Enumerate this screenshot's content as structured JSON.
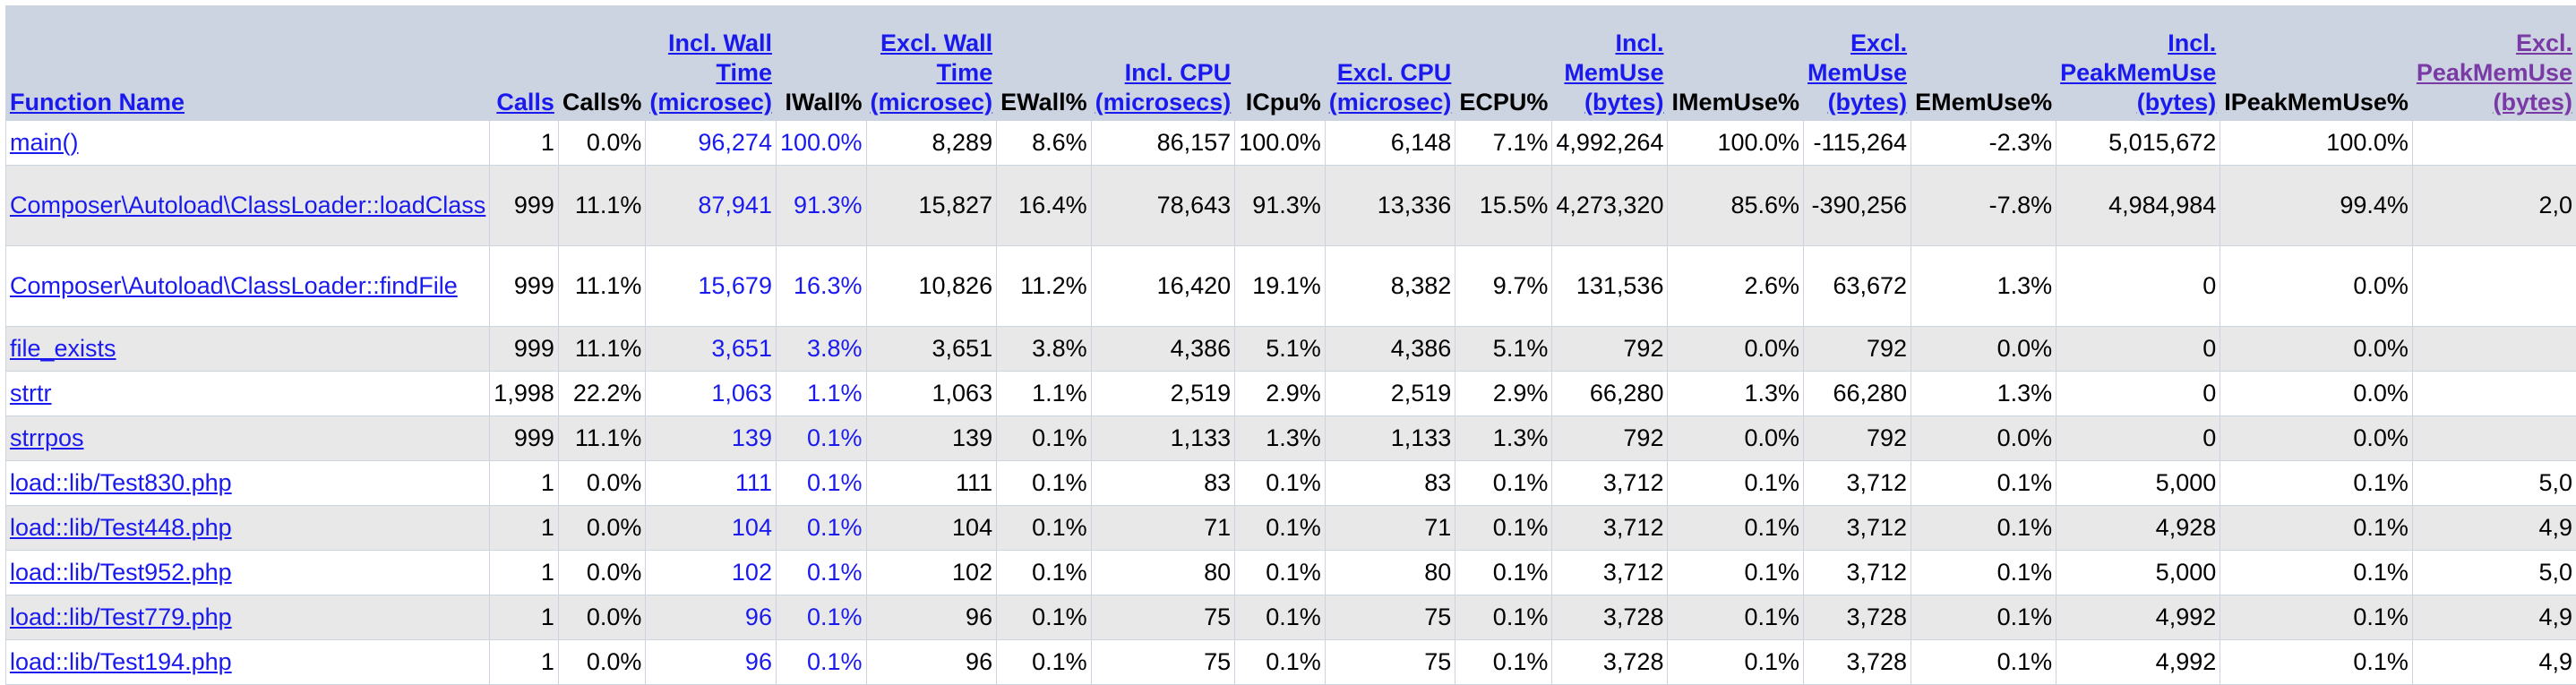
{
  "headers": [
    {
      "label": "Function Name",
      "link": true
    },
    {
      "label": "Calls",
      "link": true
    },
    {
      "label": "Calls%",
      "link": false
    },
    {
      "label": "Incl. Wall Time (microsec)",
      "link": true
    },
    {
      "label": "IWall%",
      "link": false
    },
    {
      "label": "Excl. Wall Time (microsec)",
      "link": true
    },
    {
      "label": "EWall%",
      "link": false
    },
    {
      "label": "Incl. CPU (microsecs)",
      "link": true
    },
    {
      "label": "ICpu%",
      "link": false
    },
    {
      "label": "Excl. CPU (microsec)",
      "link": true
    },
    {
      "label": "ECPU%",
      "link": false
    },
    {
      "label": "Incl. MemUse (bytes)",
      "link": true
    },
    {
      "label": "IMemUse%",
      "link": false
    },
    {
      "label": "Excl. MemUse (bytes)",
      "link": true
    },
    {
      "label": "EMemUse%",
      "link": false
    },
    {
      "label": "Incl. PeakMemUse (bytes)",
      "link": true
    },
    {
      "label": "IPeakMemUse%",
      "link": false
    },
    {
      "label": "Excl. PeakMemUse (bytes)",
      "link": true
    }
  ],
  "rows": [
    {
      "cells": [
        "main()",
        "1",
        "0.0%",
        "96,274",
        "100.0%",
        "8,289",
        "8.6%",
        "86,157",
        "100.0%",
        "6,148",
        "7.1%",
        "4,992,264",
        "100.0%",
        "-115,264",
        "-2.3%",
        "5,015,672",
        "100.0%",
        ""
      ]
    },
    {
      "cells": [
        "Composer\\Autoload\\ClassLoader::loadClass",
        "999",
        "11.1%",
        "87,941",
        "91.3%",
        "15,827",
        "16.4%",
        "78,643",
        "91.3%",
        "13,336",
        "15.5%",
        "4,273,320",
        "85.6%",
        "-390,256",
        "-7.8%",
        "4,984,984",
        "99.4%",
        "2,0"
      ]
    },
    {
      "cells": [
        "Composer\\Autoload\\ClassLoader::findFile",
        "999",
        "11.1%",
        "15,679",
        "16.3%",
        "10,826",
        "11.2%",
        "16,420",
        "19.1%",
        "8,382",
        "9.7%",
        "131,536",
        "2.6%",
        "63,672",
        "1.3%",
        "0",
        "0.0%",
        ""
      ]
    },
    {
      "cells": [
        "file_exists",
        "999",
        "11.1%",
        "3,651",
        "3.8%",
        "3,651",
        "3.8%",
        "4,386",
        "5.1%",
        "4,386",
        "5.1%",
        "792",
        "0.0%",
        "792",
        "0.0%",
        "0",
        "0.0%",
        ""
      ]
    },
    {
      "cells": [
        "strtr",
        "1,998",
        "22.2%",
        "1,063",
        "1.1%",
        "1,063",
        "1.1%",
        "2,519",
        "2.9%",
        "2,519",
        "2.9%",
        "66,280",
        "1.3%",
        "66,280",
        "1.3%",
        "0",
        "0.0%",
        ""
      ]
    },
    {
      "cells": [
        "strrpos",
        "999",
        "11.1%",
        "139",
        "0.1%",
        "139",
        "0.1%",
        "1,133",
        "1.3%",
        "1,133",
        "1.3%",
        "792",
        "0.0%",
        "792",
        "0.0%",
        "0",
        "0.0%",
        ""
      ]
    },
    {
      "cells": [
        "load::lib/Test830.php",
        "1",
        "0.0%",
        "111",
        "0.1%",
        "111",
        "0.1%",
        "83",
        "0.1%",
        "83",
        "0.1%",
        "3,712",
        "0.1%",
        "3,712",
        "0.1%",
        "5,000",
        "0.1%",
        "5,0"
      ]
    },
    {
      "cells": [
        "load::lib/Test448.php",
        "1",
        "0.0%",
        "104",
        "0.1%",
        "104",
        "0.1%",
        "71",
        "0.1%",
        "71",
        "0.1%",
        "3,712",
        "0.1%",
        "3,712",
        "0.1%",
        "4,928",
        "0.1%",
        "4,9"
      ]
    },
    {
      "cells": [
        "load::lib/Test952.php",
        "1",
        "0.0%",
        "102",
        "0.1%",
        "102",
        "0.1%",
        "80",
        "0.1%",
        "80",
        "0.1%",
        "3,712",
        "0.1%",
        "3,712",
        "0.1%",
        "5,000",
        "0.1%",
        "5,0"
      ]
    },
    {
      "cells": [
        "load::lib/Test779.php",
        "1",
        "0.0%",
        "96",
        "0.1%",
        "96",
        "0.1%",
        "75",
        "0.1%",
        "75",
        "0.1%",
        "3,728",
        "0.1%",
        "3,728",
        "0.1%",
        "4,992",
        "0.1%",
        "4,9"
      ]
    },
    {
      "cells": [
        "load::lib/Test194.php",
        "1",
        "0.0%",
        "96",
        "0.1%",
        "96",
        "0.1%",
        "75",
        "0.1%",
        "75",
        "0.1%",
        "3,728",
        "0.1%",
        "3,728",
        "0.1%",
        "4,992",
        "0.1%",
        "4,9"
      ]
    }
  ]
}
